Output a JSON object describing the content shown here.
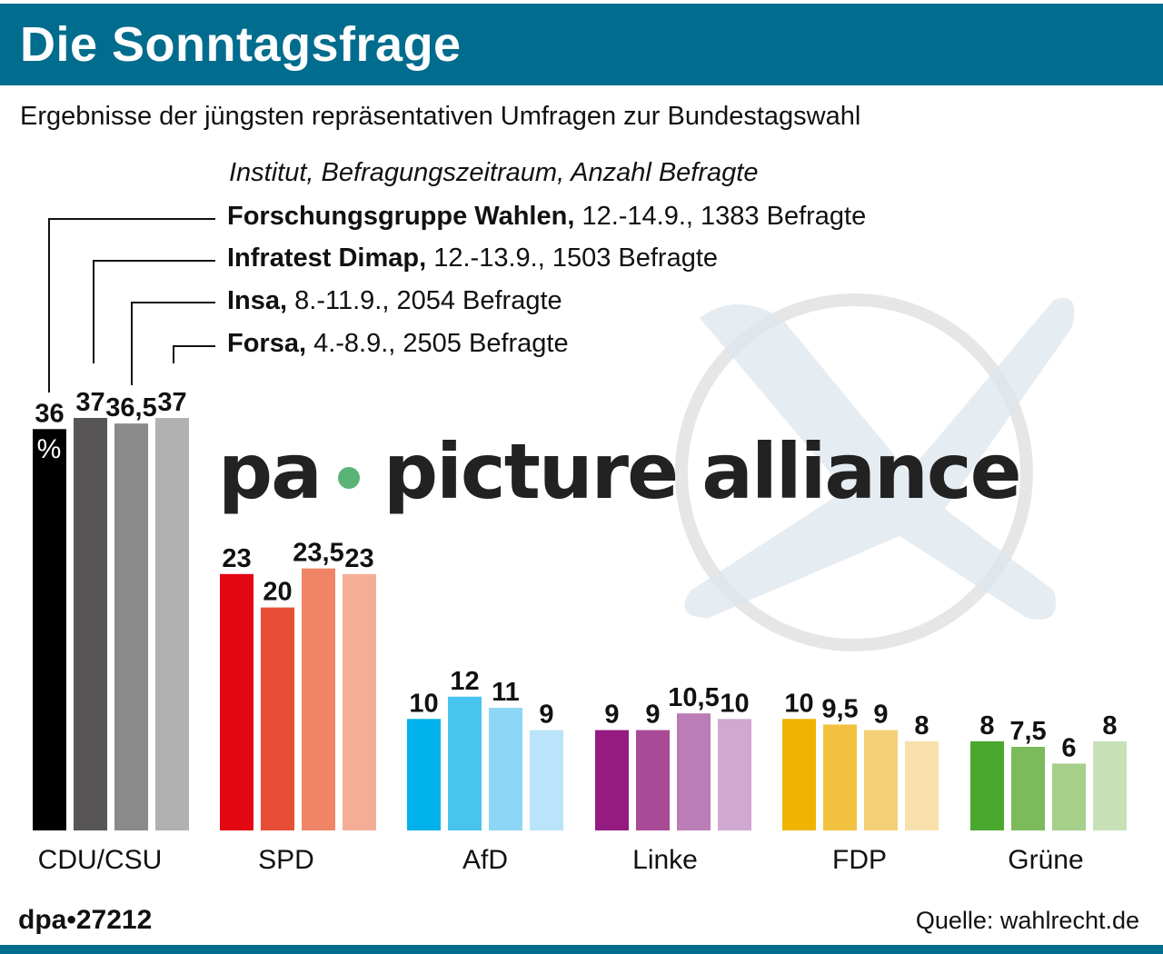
{
  "header": {
    "title": "Die Sonntagsfrage",
    "color": "#006c8e"
  },
  "subtitle": "Ergebnisse der jüngsten repräsentativen Umfragen zur Bundestagswahl",
  "legend": {
    "heading": "Institut, Befragungszeitraum, Anzahl Befragte",
    "institutes": [
      {
        "name": "Forschungsgruppe Wahlen,",
        "detail": " 12.-14.9., 1383 Befragte"
      },
      {
        "name": "Infratest Dimap,",
        "detail": " 12.-13.9., 1503 Befragte"
      },
      {
        "name": "Insa,",
        "detail": " 8.-11.9., 2054 Befragte"
      },
      {
        "name": "Forsa,",
        "detail": " 4.-8.9., 2505 Befragte"
      }
    ]
  },
  "footer": {
    "id": "dpa•27212",
    "source": "Quelle: wahlrecht.de"
  },
  "watermark": {
    "text": "pa • picture alliance"
  },
  "chart_data": {
    "type": "bar",
    "unit_label": "%",
    "categories": [
      "CDU/CSU",
      "SPD",
      "AfD",
      "Linke",
      "FDP",
      "Grüne"
    ],
    "series": [
      {
        "name": "Forschungsgruppe Wahlen",
        "values": [
          36,
          23,
          10,
          9,
          10,
          8
        ]
      },
      {
        "name": "Infratest Dimap",
        "values": [
          37,
          20,
          12,
          9,
          9.5,
          7.5
        ]
      },
      {
        "name": "Insa",
        "values": [
          36.5,
          23.5,
          11,
          10.5,
          9,
          6
        ]
      },
      {
        "name": "Forsa",
        "values": [
          37,
          23,
          9,
          10,
          8,
          8
        ]
      }
    ],
    "value_labels": [
      [
        "36",
        "37",
        "36,5",
        "37"
      ],
      [
        "23",
        "20",
        "23,5",
        "23"
      ],
      [
        "10",
        "12",
        "11",
        "9"
      ],
      [
        "9",
        "9",
        "10,5",
        "10"
      ],
      [
        "10",
        "9,5",
        "9",
        "8"
      ],
      [
        "8",
        "7,5",
        "6",
        "8"
      ]
    ],
    "colors": [
      [
        "#000000",
        "#575556",
        "#8a8a8a",
        "#b2b1b1"
      ],
      [
        "#e30613",
        "#e84e36",
        "#ef8466",
        "#f5ae96"
      ],
      [
        "#00b1eb",
        "#48c4ef",
        "#8dd6f5",
        "#b9e4f9"
      ],
      [
        "#951b81",
        "#a94a97",
        "#ba7db6",
        "#d0a8d1"
      ],
      [
        "#f0b300",
        "#f2c140",
        "#f5cf78",
        "#f8e0ac"
      ],
      [
        "#4ba82e",
        "#7cbb5c",
        "#a6cf8a",
        "#c8e0b5"
      ]
    ],
    "ylim": [
      0,
      37
    ],
    "grid": false
  }
}
